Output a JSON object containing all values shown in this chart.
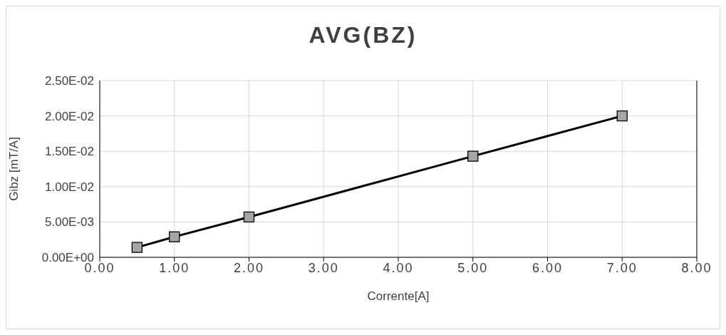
{
  "chart_data": {
    "type": "line",
    "title": "AVG(BZ)",
    "xlabel": "Corrente[A]",
    "ylabel": "Gibz [mT/A]",
    "x": [
      0.5,
      1,
      2,
      5,
      7
    ],
    "series": [
      {
        "color": "#000000",
        "values": [
          0.0014,
          0.0029,
          0.0057,
          0.0143,
          0.02
        ]
      }
    ],
    "xlim": [
      0,
      8
    ],
    "xticks": [
      {
        "value": 0,
        "label": "0.00"
      },
      {
        "value": 1,
        "label": "1.00"
      },
      {
        "value": 2,
        "label": "2.00"
      },
      {
        "value": 3,
        "label": "3.00"
      },
      {
        "value": 4,
        "label": "4.00"
      },
      {
        "value": 5,
        "label": "5.00"
      },
      {
        "value": 6,
        "label": "6.00"
      },
      {
        "value": 7,
        "label": "7.00"
      },
      {
        "value": 8,
        "label": "8.00"
      }
    ],
    "ylim": [
      0,
      0.025
    ],
    "yticks": [
      {
        "value": 0,
        "label": "0.00E+00"
      },
      {
        "value": 0.005,
        "label": "5.00E-03"
      },
      {
        "value": 0.01,
        "label": "1.00E-02"
      },
      {
        "value": 0.015,
        "label": "1.50E-02"
      },
      {
        "value": 0.02,
        "label": "2.00E-02"
      },
      {
        "value": 0.025,
        "label": "2.50E-02"
      }
    ],
    "grid": true,
    "marker": "square",
    "line_style": "solid"
  }
}
